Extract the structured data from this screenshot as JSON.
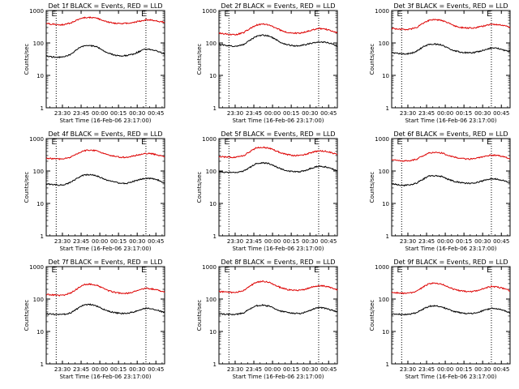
{
  "figure": {
    "start_time_label": "Start Time (16-Feb-06 23:17:00)",
    "ylabel": "Counts/sec",
    "colors": {
      "events": "#000000",
      "lld": "#dd0000",
      "axis": "#000000"
    },
    "x_tick_labels": [
      "23:30",
      "23:45",
      "00:00",
      "00:15",
      "00:30",
      "00:45"
    ],
    "y_tick_labels": [
      "1",
      "10",
      "100",
      "1000"
    ],
    "event_markers": [
      {
        "label": "E",
        "time_min": 8
      },
      {
        "label": "E",
        "time_min": 80
      }
    ]
  },
  "chart_data": [
    {
      "type": "line",
      "title": "Det 1f BLACK = Events, RED = LLD",
      "xlabel": "Start Time (16-Feb-06 23:17:00)",
      "ylabel": "Counts/sec",
      "yscale": "log",
      "ylim": [
        1,
        1000
      ],
      "xlim_min": [
        0,
        95
      ],
      "series": [
        {
          "name": "Events",
          "color": "#000000",
          "x": [
            0,
            5,
            10,
            15,
            20,
            25,
            30,
            35,
            40,
            45,
            50,
            55,
            60,
            65,
            70,
            75,
            80,
            85,
            90,
            95
          ],
          "y": [
            40,
            37,
            36,
            38,
            45,
            65,
            80,
            82,
            78,
            60,
            48,
            42,
            40,
            41,
            45,
            55,
            65,
            62,
            55,
            45
          ]
        },
        {
          "name": "LLD",
          "color": "#dd0000",
          "x": [
            0,
            5,
            10,
            15,
            20,
            25,
            30,
            35,
            40,
            45,
            50,
            55,
            60,
            65,
            70,
            75,
            80,
            85,
            90,
            95
          ],
          "y": [
            400,
            380,
            360,
            370,
            420,
            520,
            600,
            610,
            590,
            500,
            440,
            410,
            400,
            405,
            430,
            470,
            520,
            500,
            470,
            430
          ]
        }
      ]
    },
    {
      "type": "line",
      "title": "Det 2f BLACK = Events, RED = LLD",
      "xlabel": "Start Time (16-Feb-06 23:17:00)",
      "ylabel": "Counts/sec",
      "yscale": "log",
      "ylim": [
        1,
        1000
      ],
      "xlim_min": [
        0,
        95
      ],
      "series": [
        {
          "name": "Events",
          "color": "#000000",
          "x": [
            0,
            5,
            10,
            15,
            20,
            25,
            30,
            35,
            40,
            45,
            50,
            55,
            60,
            65,
            70,
            75,
            80,
            85,
            90,
            95
          ],
          "y": [
            90,
            85,
            80,
            80,
            90,
            120,
            160,
            175,
            165,
            130,
            100,
            88,
            82,
            82,
            90,
            100,
            110,
            105,
            95,
            80
          ]
        },
        {
          "name": "LLD",
          "color": "#dd0000",
          "x": [
            0,
            5,
            10,
            15,
            20,
            25,
            30,
            35,
            40,
            45,
            50,
            55,
            60,
            65,
            70,
            75,
            80,
            85,
            90,
            95
          ],
          "y": [
            200,
            190,
            180,
            185,
            210,
            280,
            360,
            380,
            360,
            300,
            240,
            210,
            200,
            200,
            220,
            250,
            280,
            270,
            240,
            210
          ]
        }
      ]
    },
    {
      "type": "line",
      "title": "Det 3f BLACK = Events, RED = LLD",
      "xlabel": "Start Time (16-Feb-06 23:17:00)",
      "ylabel": "Counts/sec",
      "yscale": "log",
      "ylim": [
        1,
        1000
      ],
      "xlim_min": [
        0,
        95
      ],
      "series": [
        {
          "name": "Events",
          "color": "#000000",
          "x": [
            0,
            5,
            10,
            15,
            20,
            25,
            30,
            35,
            40,
            45,
            50,
            55,
            60,
            65,
            70,
            75,
            80,
            85,
            90,
            95
          ],
          "y": [
            50,
            48,
            46,
            47,
            55,
            75,
            90,
            92,
            88,
            70,
            58,
            52,
            50,
            50,
            55,
            62,
            70,
            68,
            60,
            55
          ]
        },
        {
          "name": "LLD",
          "color": "#dd0000",
          "x": [
            0,
            5,
            10,
            15,
            20,
            25,
            30,
            35,
            40,
            45,
            50,
            55,
            60,
            65,
            70,
            75,
            80,
            85,
            90,
            95
          ],
          "y": [
            280,
            270,
            260,
            265,
            300,
            400,
            500,
            520,
            500,
            420,
            340,
            300,
            290,
            290,
            310,
            340,
            380,
            370,
            340,
            300
          ]
        }
      ]
    },
    {
      "type": "line",
      "title": "Det 4f BLACK = Events, RED = LLD",
      "xlabel": "Start Time (16-Feb-06 23:17:00)",
      "ylabel": "Counts/sec",
      "yscale": "log",
      "ylim": [
        1,
        1000
      ],
      "xlim_min": [
        0,
        95
      ],
      "series": [
        {
          "name": "Events",
          "color": "#000000",
          "x": [
            0,
            5,
            10,
            15,
            20,
            25,
            30,
            35,
            40,
            45,
            50,
            55,
            60,
            65,
            70,
            75,
            80,
            85,
            90,
            95
          ],
          "y": [
            40,
            38,
            37,
            38,
            45,
            60,
            75,
            78,
            72,
            60,
            50,
            45,
            42,
            42,
            48,
            55,
            60,
            58,
            52,
            42
          ]
        },
        {
          "name": "LLD",
          "color": "#dd0000",
          "x": [
            0,
            5,
            10,
            15,
            20,
            25,
            30,
            35,
            40,
            45,
            50,
            55,
            60,
            65,
            70,
            75,
            80,
            85,
            90,
            95
          ],
          "y": [
            250,
            240,
            235,
            240,
            270,
            340,
            420,
            440,
            420,
            360,
            310,
            280,
            265,
            265,
            290,
            320,
            350,
            340,
            310,
            270
          ]
        }
      ]
    },
    {
      "type": "line",
      "title": "Det 5f BLACK = Events, RED = LLD",
      "xlabel": "Start Time (16-Feb-06 23:17:00)",
      "ylabel": "Counts/sec",
      "yscale": "log",
      "ylim": [
        1,
        1000
      ],
      "xlim_min": [
        0,
        95
      ],
      "series": [
        {
          "name": "Events",
          "color": "#000000",
          "x": [
            0,
            5,
            10,
            15,
            20,
            25,
            30,
            35,
            40,
            45,
            50,
            55,
            60,
            65,
            70,
            75,
            80,
            85,
            90,
            95
          ],
          "y": [
            95,
            92,
            90,
            92,
            100,
            130,
            170,
            180,
            170,
            140,
            115,
            100,
            95,
            95,
            105,
            125,
            140,
            135,
            120,
            100
          ]
        },
        {
          "name": "LLD",
          "color": "#dd0000",
          "x": [
            0,
            5,
            10,
            15,
            20,
            25,
            30,
            35,
            40,
            45,
            50,
            55,
            60,
            65,
            70,
            75,
            80,
            85,
            90,
            95
          ],
          "y": [
            280,
            270,
            265,
            270,
            300,
            400,
            520,
            540,
            510,
            430,
            360,
            320,
            300,
            300,
            330,
            380,
            420,
            410,
            370,
            320
          ]
        }
      ]
    },
    {
      "type": "line",
      "title": "Det 6f BLACK = Events, RED = LLD",
      "xlabel": "Start Time (16-Feb-06 23:17:00)",
      "ylabel": "Counts/sec",
      "yscale": "log",
      "ylim": [
        1,
        1000
      ],
      "xlim_min": [
        0,
        95
      ],
      "series": [
        {
          "name": "Events",
          "color": "#000000",
          "x": [
            0,
            5,
            10,
            15,
            20,
            25,
            30,
            35,
            40,
            45,
            50,
            55,
            60,
            65,
            70,
            75,
            80,
            85,
            90,
            95
          ],
          "y": [
            40,
            38,
            36,
            38,
            42,
            55,
            70,
            72,
            68,
            56,
            48,
            44,
            42,
            42,
            46,
            52,
            58,
            56,
            50,
            44
          ]
        },
        {
          "name": "LLD",
          "color": "#dd0000",
          "x": [
            0,
            5,
            10,
            15,
            20,
            25,
            30,
            35,
            40,
            45,
            50,
            55,
            60,
            65,
            70,
            75,
            80,
            85,
            90,
            95
          ],
          "y": [
            220,
            210,
            205,
            210,
            230,
            290,
            360,
            380,
            360,
            310,
            270,
            245,
            235,
            235,
            255,
            285,
            310,
            300,
            275,
            240
          ]
        }
      ]
    },
    {
      "type": "line",
      "title": "Det 7f BLACK = Events, RED = LLD",
      "xlabel": "Start Time (16-Feb-06 23:17:00)",
      "ylabel": "Counts/sec",
      "yscale": "log",
      "ylim": [
        1,
        1000
      ],
      "xlim_min": [
        0,
        95
      ],
      "series": [
        {
          "name": "Events",
          "color": "#000000",
          "x": [
            0,
            5,
            10,
            15,
            20,
            25,
            30,
            35,
            40,
            45,
            50,
            55,
            60,
            65,
            70,
            75,
            80,
            85,
            90,
            95
          ],
          "y": [
            35,
            34,
            33,
            34,
            38,
            50,
            65,
            68,
            62,
            50,
            42,
            38,
            36,
            36,
            40,
            46,
            52,
            50,
            44,
            38
          ]
        },
        {
          "name": "LLD",
          "color": "#dd0000",
          "x": [
            0,
            5,
            10,
            15,
            20,
            25,
            30,
            35,
            40,
            45,
            50,
            55,
            60,
            65,
            70,
            75,
            80,
            85,
            90,
            95
          ],
          "y": [
            140,
            135,
            130,
            135,
            155,
            210,
            280,
            290,
            270,
            220,
            180,
            160,
            150,
            150,
            165,
            190,
            215,
            205,
            185,
            160
          ]
        }
      ]
    },
    {
      "type": "line",
      "title": "Det 8f BLACK = Events, RED = LLD",
      "xlabel": "Start Time (16-Feb-06 23:17:00)",
      "ylabel": "Counts/sec",
      "yscale": "log",
      "ylim": [
        1,
        1000
      ],
      "xlim_min": [
        0,
        95
      ],
      "series": [
        {
          "name": "Events",
          "color": "#000000",
          "x": [
            0,
            5,
            10,
            15,
            20,
            25,
            30,
            35,
            40,
            45,
            50,
            55,
            60,
            65,
            70,
            75,
            80,
            85,
            90,
            95
          ],
          "y": [
            35,
            34,
            33,
            34,
            38,
            50,
            62,
            65,
            60,
            50,
            42,
            38,
            36,
            36,
            40,
            48,
            55,
            52,
            46,
            40
          ]
        },
        {
          "name": "LLD",
          "color": "#dd0000",
          "x": [
            0,
            5,
            10,
            15,
            20,
            25,
            30,
            35,
            40,
            45,
            50,
            55,
            60,
            65,
            70,
            75,
            80,
            85,
            90,
            95
          ],
          "y": [
            170,
            165,
            160,
            165,
            185,
            250,
            330,
            350,
            330,
            270,
            220,
            195,
            185,
            185,
            205,
            235,
            260,
            250,
            225,
            190
          ]
        }
      ]
    },
    {
      "type": "line",
      "title": "Det 9f BLACK = Events, RED = LLD",
      "xlabel": "Start Time (16-Feb-06 23:17:00)",
      "ylabel": "Counts/sec",
      "yscale": "log",
      "ylim": [
        1,
        1000
      ],
      "xlim_min": [
        0,
        95
      ],
      "series": [
        {
          "name": "Events",
          "color": "#000000",
          "x": [
            0,
            5,
            10,
            15,
            20,
            25,
            30,
            35,
            40,
            45,
            50,
            55,
            60,
            65,
            70,
            75,
            80,
            85,
            90,
            95
          ],
          "y": [
            35,
            34,
            33,
            34,
            38,
            48,
            60,
            62,
            58,
            48,
            42,
            38,
            36,
            36,
            40,
            46,
            52,
            50,
            44,
            38
          ]
        },
        {
          "name": "LLD",
          "color": "#dd0000",
          "x": [
            0,
            5,
            10,
            15,
            20,
            25,
            30,
            35,
            40,
            45,
            50,
            55,
            60,
            65,
            70,
            75,
            80,
            85,
            90,
            95
          ],
          "y": [
            160,
            155,
            150,
            155,
            175,
            230,
            300,
            310,
            290,
            240,
            200,
            180,
            170,
            170,
            190,
            220,
            245,
            235,
            210,
            180
          ]
        }
      ]
    }
  ]
}
